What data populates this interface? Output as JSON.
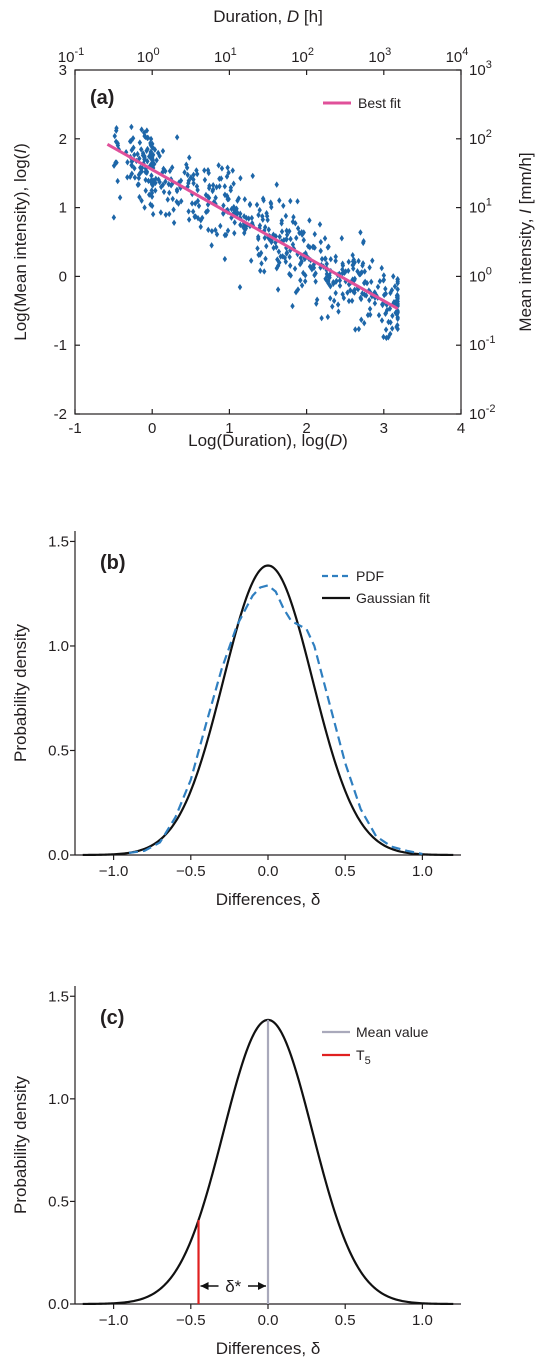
{
  "colors": {
    "axis": "#231f20",
    "points": "#1d66a8",
    "best_fit": "#e0509a",
    "pdf": "#2f7fc0",
    "gaussian": "#111111",
    "mean_line": "#a9a9bb",
    "t5_line": "#e02020"
  },
  "chart_data": [
    {
      "type": "scatter",
      "panel": "(a)",
      "xlabel": "Log(Duration), log(D)",
      "ylabel": "Log(Mean intensity), log(I)",
      "x2label": "Duration, D [h]",
      "y2label": "Mean intensity, I [mm/h]",
      "xlim": [
        -1,
        4
      ],
      "ylim": [
        -2,
        3
      ],
      "x_ticks": [
        "-1",
        "0",
        "1",
        "2",
        "3",
        "4"
      ],
      "y_ticks": [
        "-2",
        "-1",
        "0",
        "1",
        "2",
        "3"
      ],
      "x2_ticks": [
        "10^-1",
        "10^0",
        "10^1",
        "10^2",
        "10^3",
        "10^4"
      ],
      "y2_ticks": [
        "10^-2",
        "10^-1",
        "10^0",
        "10^1",
        "10^2",
        "10^3"
      ],
      "legend": [
        "Best fit"
      ],
      "legend_position": "top-right",
      "best_fit": {
        "x": [
          -0.58,
          3.18
        ],
        "y": [
          1.92,
          -0.47
        ]
      },
      "scatter": {
        "n_points": 600,
        "x_range": [
          -0.58,
          3.18
        ],
        "slope": -0.636,
        "intercept": 1.55,
        "residual_sd": 0.29
      },
      "grid": false
    },
    {
      "type": "line",
      "panel": "(b)",
      "xlabel": "Differences, δ",
      "ylabel": "Probability density",
      "xlim": [
        -1.25,
        1.25
      ],
      "ylim": [
        0,
        1.55
      ],
      "x_ticks": [
        "−1.0",
        "−0.5",
        "0.0",
        "0.5",
        "1.0"
      ],
      "y_ticks": [
        "0.0",
        "0.5",
        "1.0",
        "1.5"
      ],
      "legend": [
        "PDF",
        "Gaussian fit"
      ],
      "legend_position": "top-right",
      "gaussian": {
        "mean": 0.0,
        "sd": 0.288,
        "peak": 1.385
      },
      "series": [
        {
          "name": "PDF",
          "x": [
            -0.9,
            -0.8,
            -0.7,
            -0.6,
            -0.5,
            -0.4,
            -0.3,
            -0.2,
            -0.1,
            -0.05,
            0.0,
            0.05,
            0.1,
            0.15,
            0.2,
            0.25,
            0.3,
            0.4,
            0.5,
            0.6,
            0.7,
            0.8,
            0.9,
            1.0
          ],
          "y": [
            0.01,
            0.02,
            0.06,
            0.18,
            0.36,
            0.63,
            0.89,
            1.1,
            1.24,
            1.28,
            1.29,
            1.26,
            1.18,
            1.12,
            1.1,
            1.08,
            1.0,
            0.72,
            0.44,
            0.22,
            0.09,
            0.04,
            0.02,
            0.005
          ]
        },
        {
          "name": "Gaussian fit",
          "from": "gaussian"
        }
      ],
      "grid": false
    },
    {
      "type": "line",
      "panel": "(c)",
      "xlabel": "Differences, δ",
      "ylabel": "Probability density",
      "xlim": [
        -1.25,
        1.25
      ],
      "ylim": [
        0,
        1.55
      ],
      "x_ticks": [
        "−1.0",
        "−0.5",
        "0.0",
        "0.5",
        "1.0"
      ],
      "y_ticks": [
        "0.0",
        "0.5",
        "1.0",
        "1.5"
      ],
      "legend": [
        "Mean value",
        "T5"
      ],
      "legend_position": "top-right",
      "gaussian": {
        "mean": 0.0,
        "sd": 0.288,
        "peak": 1.385
      },
      "mean_value": 0.0,
      "t5": -0.45,
      "annotation": "δ*",
      "grid": false
    }
  ]
}
